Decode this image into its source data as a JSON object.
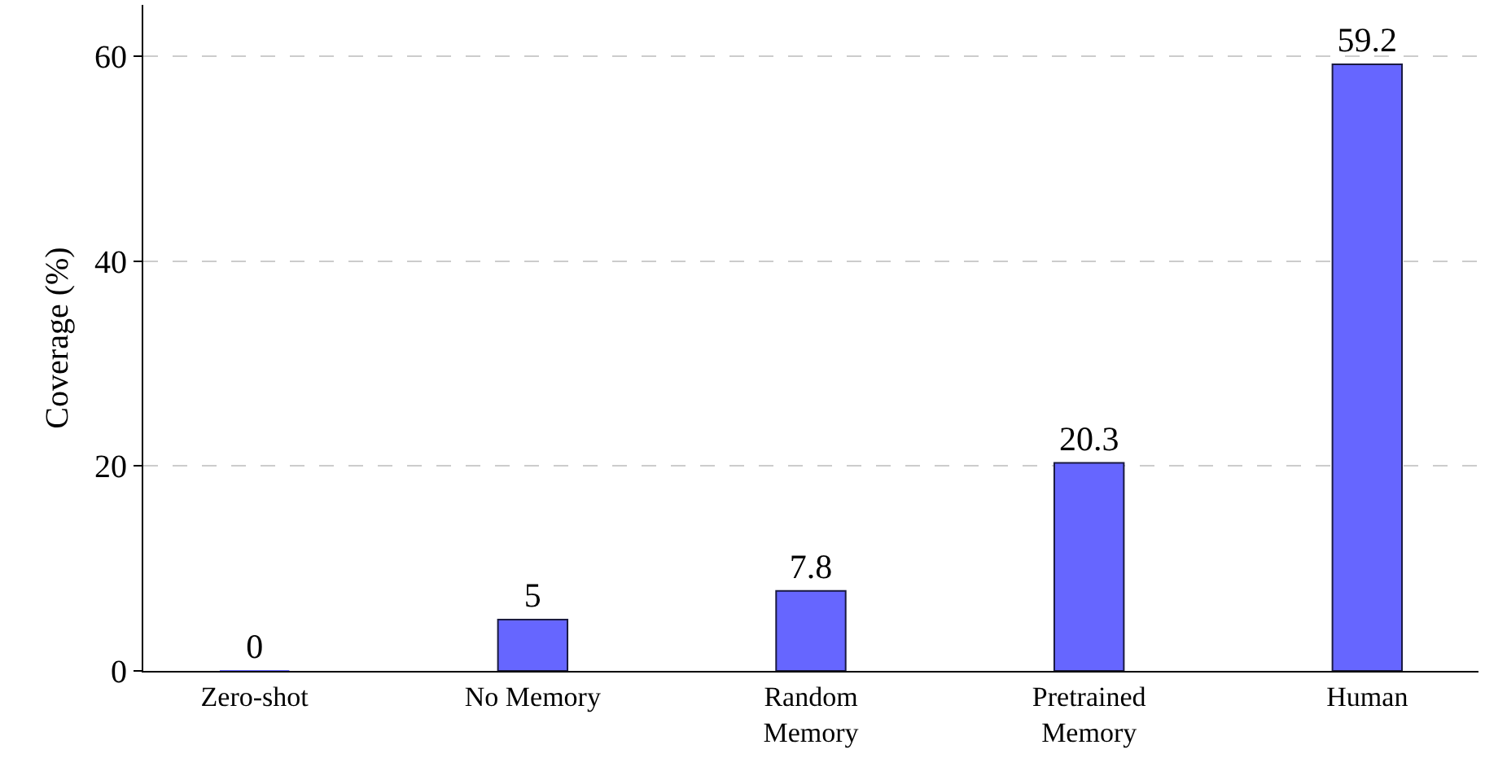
{
  "chart_data": {
    "type": "bar",
    "ylabel": "Coverage (%)",
    "categories": [
      "Zero-shot",
      "No Memory",
      "Random\nMemory",
      "Pretrained\nMemory",
      "Human"
    ],
    "values": [
      0,
      5,
      7.8,
      20.3,
      59.2
    ],
    "color": "#6666ff",
    "ylim": [
      0,
      65
    ],
    "yticks": [
      0,
      20,
      40,
      60
    ],
    "grid": "y",
    "data_labels": true
  }
}
